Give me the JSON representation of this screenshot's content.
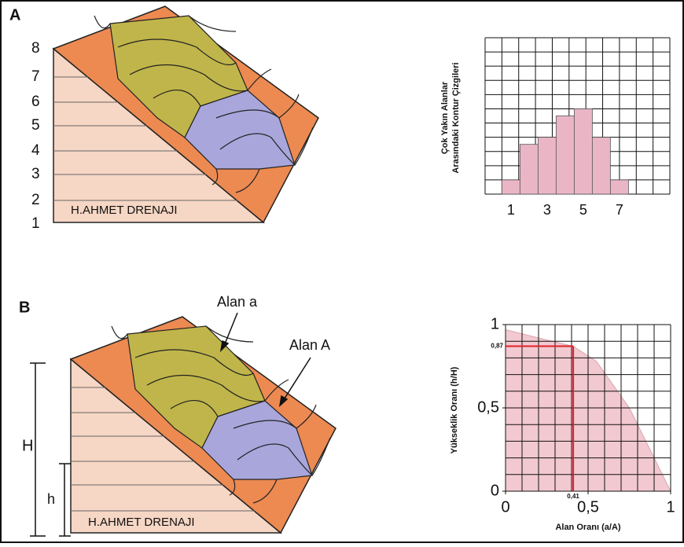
{
  "panel_a": {
    "letter": "A",
    "contour_labels": [
      "8",
      "7",
      "6",
      "5",
      "4",
      "3",
      "2",
      "1"
    ],
    "basin_label": "H.AHMET DRENAJI",
    "histogram": {
      "type": "bar",
      "ylabel": [
        "Çok Yakın Alanlar",
        "Arasındaki Kontur Çizgileri"
      ],
      "categories": [
        "1",
        null,
        "3",
        null,
        "5",
        null,
        "7"
      ],
      "values": [
        1,
        3.5,
        4,
        5.5,
        6,
        4,
        1
      ],
      "color": "#eab6c6"
    }
  },
  "panel_b": {
    "letter": "B",
    "area_small_label": "Alan a",
    "area_big_label": "Alan A",
    "height_big_label": "H",
    "height_small_label": "h",
    "basin_label": "H.AHMET DRENAJI",
    "chart": {
      "type": "area",
      "xlabel": "Alan Oranı (a/A)",
      "ylabel": "Yükseklik Oranı (h/H)",
      "x": [
        0,
        0.2,
        0.41,
        0.55,
        0.75,
        0.9,
        1
      ],
      "values": [
        0.97,
        0.92,
        0.87,
        0.78,
        0.5,
        0.2,
        0
      ],
      "xlim": [
        0,
        1
      ],
      "ylim": [
        0,
        1
      ],
      "xticks": [
        0,
        {
          "value": 0.5,
          "label": "0,5"
        },
        1
      ],
      "yticks": [
        0,
        {
          "value": 0.5,
          "label": "0,5"
        },
        1
      ],
      "color": "#f2c9d0",
      "marker": {
        "x": {
          "value": 0.41,
          "label": "0,41"
        },
        "y": {
          "value": 0.87,
          "label": "0,87"
        },
        "color": "#e0202a"
      }
    }
  }
}
